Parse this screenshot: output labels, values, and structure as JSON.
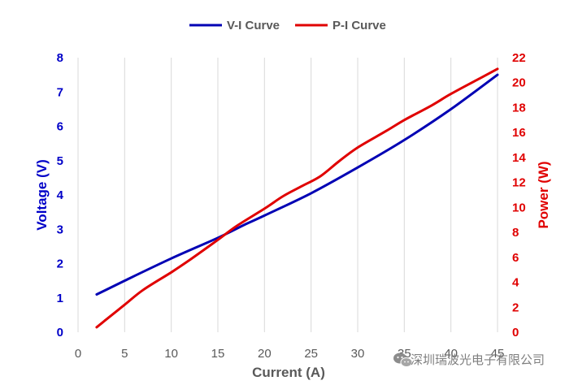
{
  "chart_data": {
    "type": "line",
    "xlabel": "Current (A)",
    "ylabel_left": "Voltage (V)",
    "ylabel_right": "Power (W)",
    "xlim": [
      0,
      45
    ],
    "x_ticks": [
      0,
      5,
      10,
      15,
      20,
      25,
      30,
      35,
      40,
      45
    ],
    "ylim_left": [
      0,
      8
    ],
    "y_ticks_left": [
      0,
      1,
      2,
      3,
      4,
      5,
      6,
      7,
      8
    ],
    "ylim_right": [
      0,
      22
    ],
    "y_ticks_right": [
      0,
      2,
      4,
      6,
      8,
      10,
      12,
      14,
      16,
      18,
      20,
      22
    ],
    "grid": "vertical",
    "legend_position": "top-center",
    "series": [
      {
        "name": "V-I Curve",
        "axis": "left",
        "color": "#0000b4",
        "x": [
          2,
          5,
          10,
          15,
          18,
          20,
          25,
          30,
          35,
          40,
          45
        ],
        "y": [
          1.1,
          1.5,
          2.15,
          2.75,
          3.15,
          3.4,
          4.05,
          4.8,
          5.6,
          6.5,
          7.5
        ]
      },
      {
        "name": "P-I Curve",
        "axis": "right",
        "color": "#e00000",
        "x": [
          2,
          3,
          5,
          7,
          10,
          12,
          15,
          17,
          20,
          22,
          24,
          26,
          28,
          30,
          33,
          35,
          38,
          40,
          43,
          45
        ],
        "y": [
          0.4,
          1.0,
          2.2,
          3.4,
          4.8,
          5.8,
          7.4,
          8.5,
          9.9,
          10.9,
          11.7,
          12.5,
          13.7,
          14.8,
          16.1,
          17.0,
          18.2,
          19.1,
          20.3,
          21.1
        ]
      }
    ]
  },
  "watermark": {
    "icon": "wechat-icon",
    "text": "深圳瑞波光电子有限公司"
  }
}
